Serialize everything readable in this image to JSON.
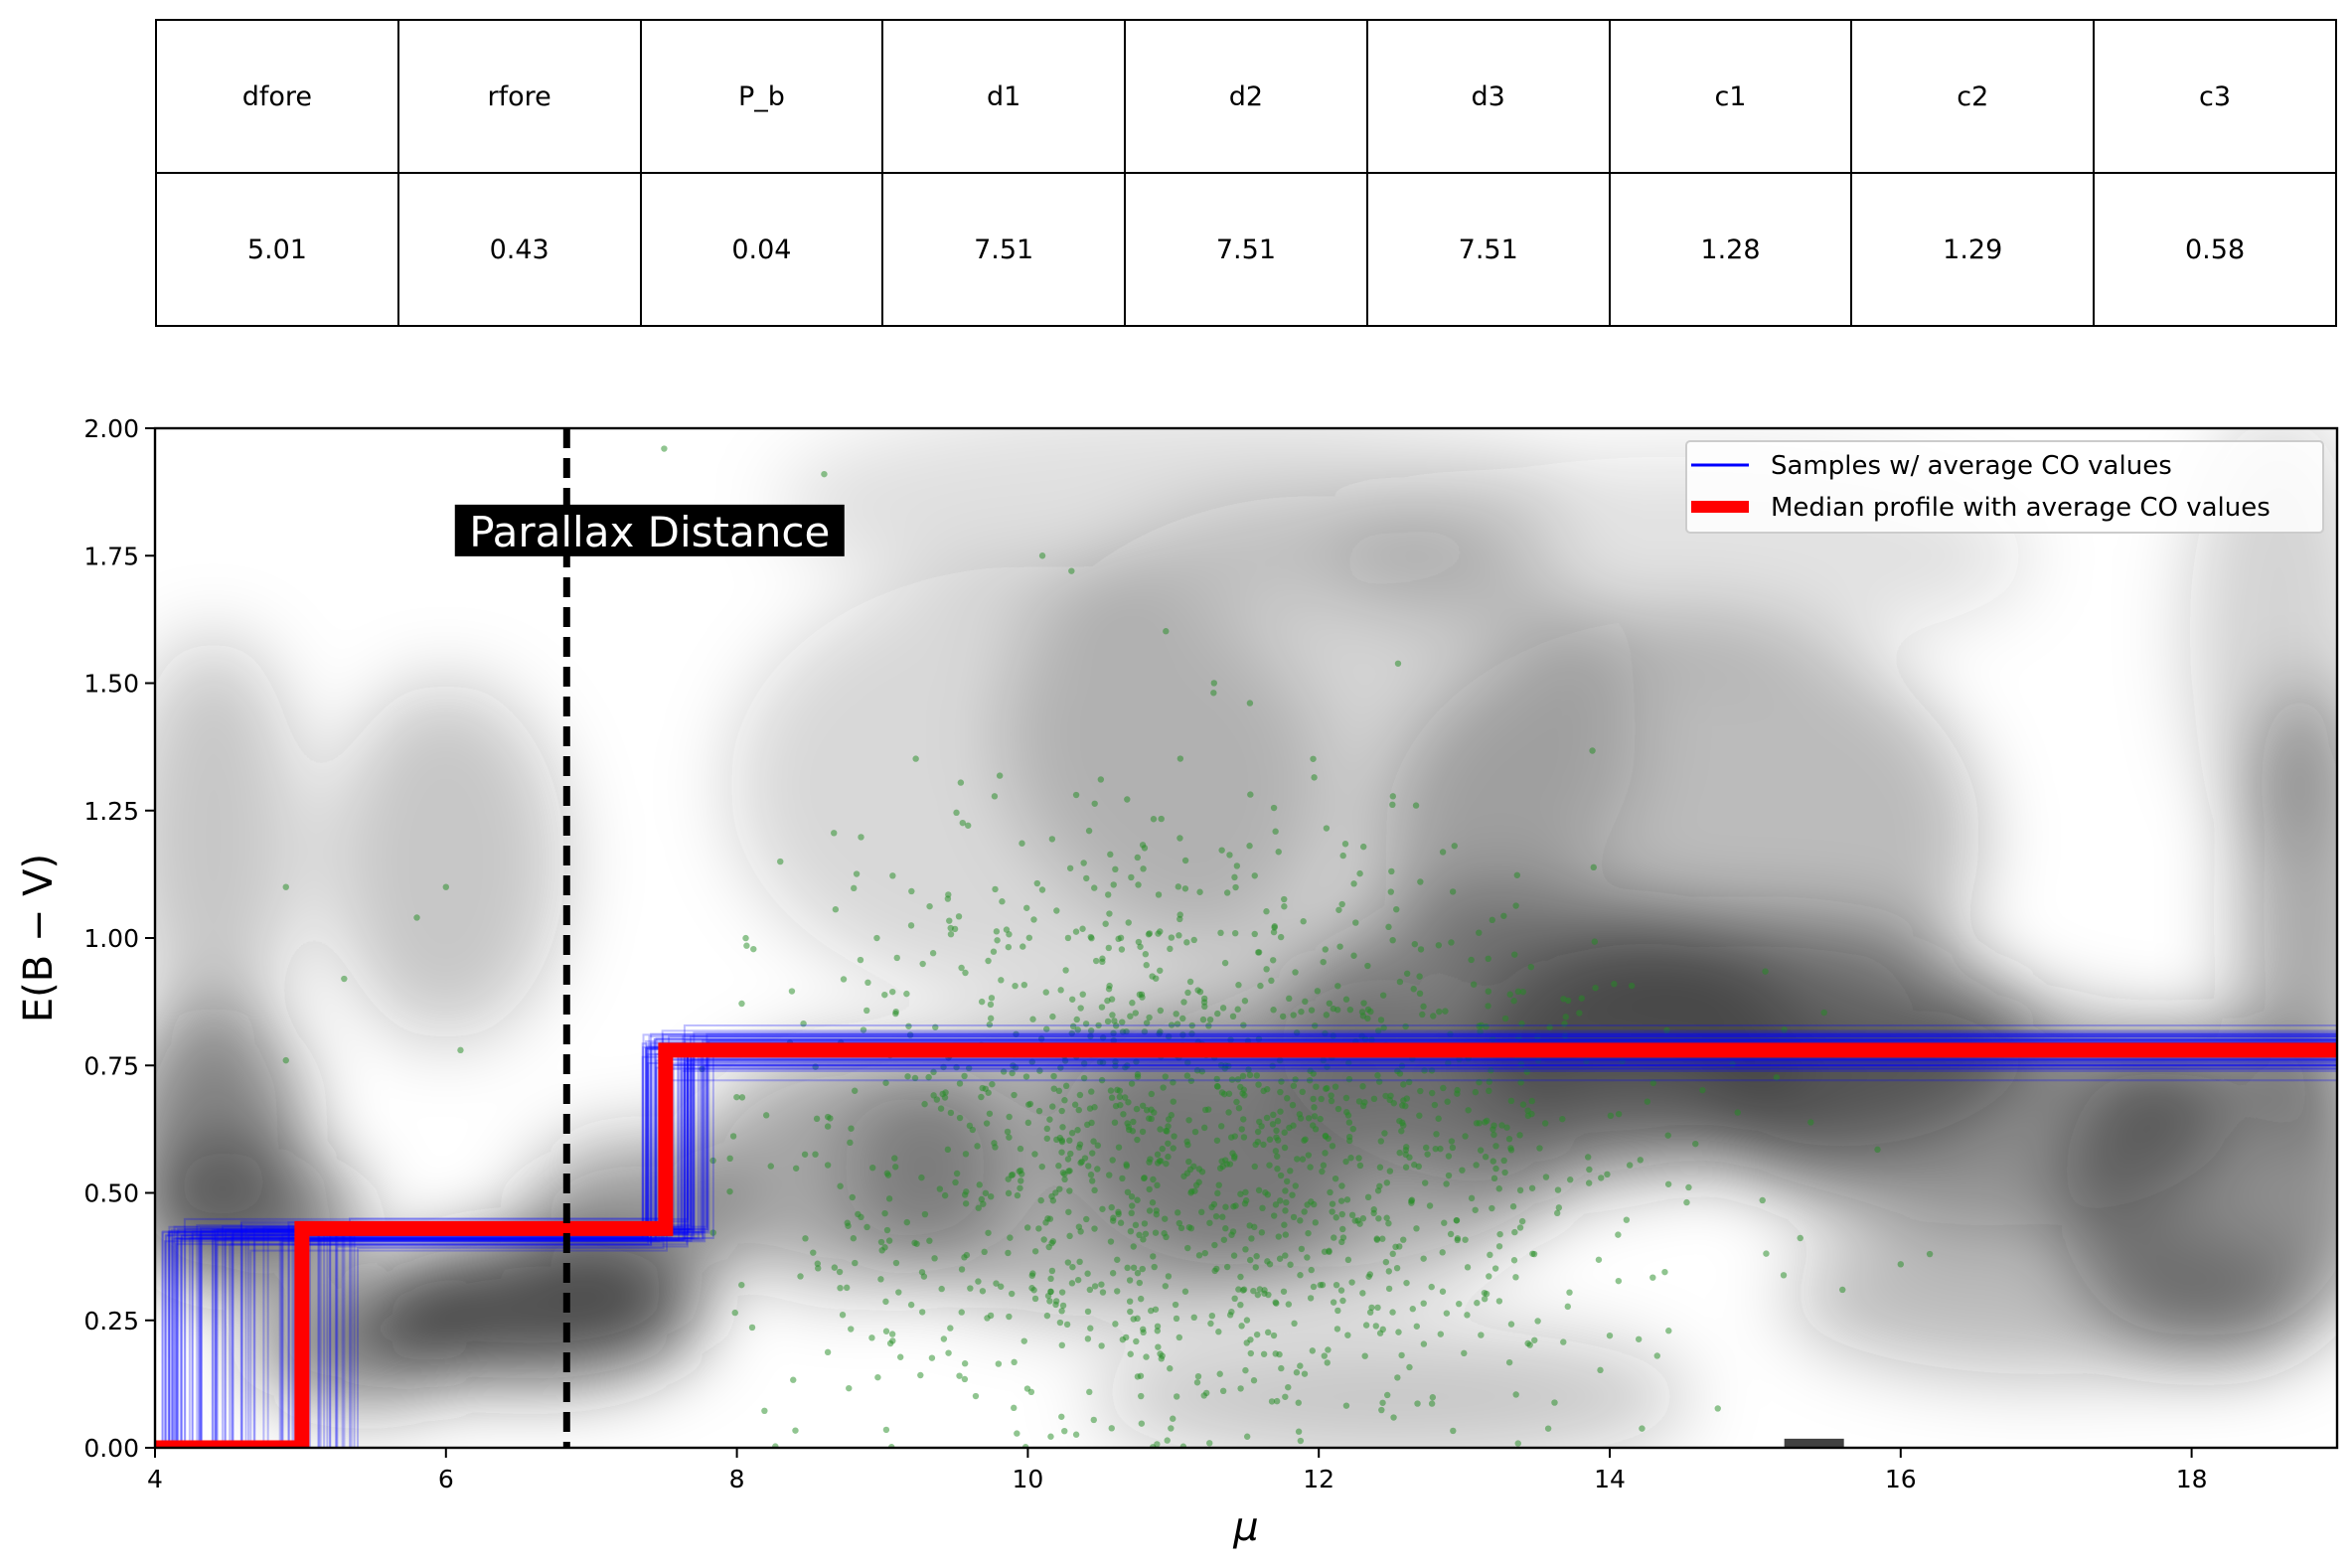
{
  "param_table": {
    "headers": [
      "dfore",
      "rfore",
      "P_b",
      "d1",
      "d2",
      "d3",
      "c1",
      "c2",
      "c3"
    ],
    "values": [
      "5.01",
      "0.43",
      "0.04",
      "7.51",
      "7.51",
      "7.51",
      "1.28",
      "1.29",
      "0.58"
    ]
  },
  "chart_data": {
    "type": "line",
    "title": "",
    "xlabel": "μ",
    "ylabel": "E(B − V)",
    "xlim": [
      4,
      19
    ],
    "ylim": [
      0,
      2.0
    ],
    "x_ticks": [
      4,
      6,
      8,
      10,
      12,
      14,
      16,
      18
    ],
    "x_tick_labels": [
      "4",
      "6",
      "8",
      "10",
      "12",
      "14",
      "16",
      "18"
    ],
    "y_ticks": [
      0,
      0.25,
      0.5,
      0.75,
      1.0,
      1.25,
      1.5,
      1.75,
      2.0
    ],
    "y_tick_labels": [
      "0.00",
      "0.25",
      "0.50",
      "0.75",
      "1.00",
      "1.25",
      "1.50",
      "1.75",
      "2.00"
    ],
    "grid": false,
    "legend_position": "top-right",
    "background": "grayscale density map of E(B-V) vs μ",
    "series": [
      {
        "name": "Samples  w/ average CO values",
        "color": "#0000ff",
        "style": "thin semi-transparent step lines (many samples)",
        "step_x_ranges": [
          [
            4.05,
            5.4
          ],
          [
            7.35,
            7.85
          ]
        ],
        "levels": [
          0.0,
          0.42,
          0.78
        ]
      },
      {
        "name": "Median profile with average CO values",
        "color": "#ff0000",
        "style": "thick step line",
        "x": [
          4,
          5.01,
          5.01,
          7.51,
          7.51,
          19
        ],
        "y": [
          0.0,
          0.0,
          0.43,
          0.43,
          0.78,
          0.78
        ]
      }
    ],
    "vertical_line": {
      "x": 6.83,
      "style": "dashed",
      "color": "#000000"
    },
    "annotation": {
      "text": "Parallax Distance",
      "x": 7.4,
      "y": 1.78
    },
    "scatter_points": {
      "color": "#228B22",
      "description": "green stellar reddening points, densest near μ 10–13, E(B−V) 0.2–1.2"
    }
  }
}
